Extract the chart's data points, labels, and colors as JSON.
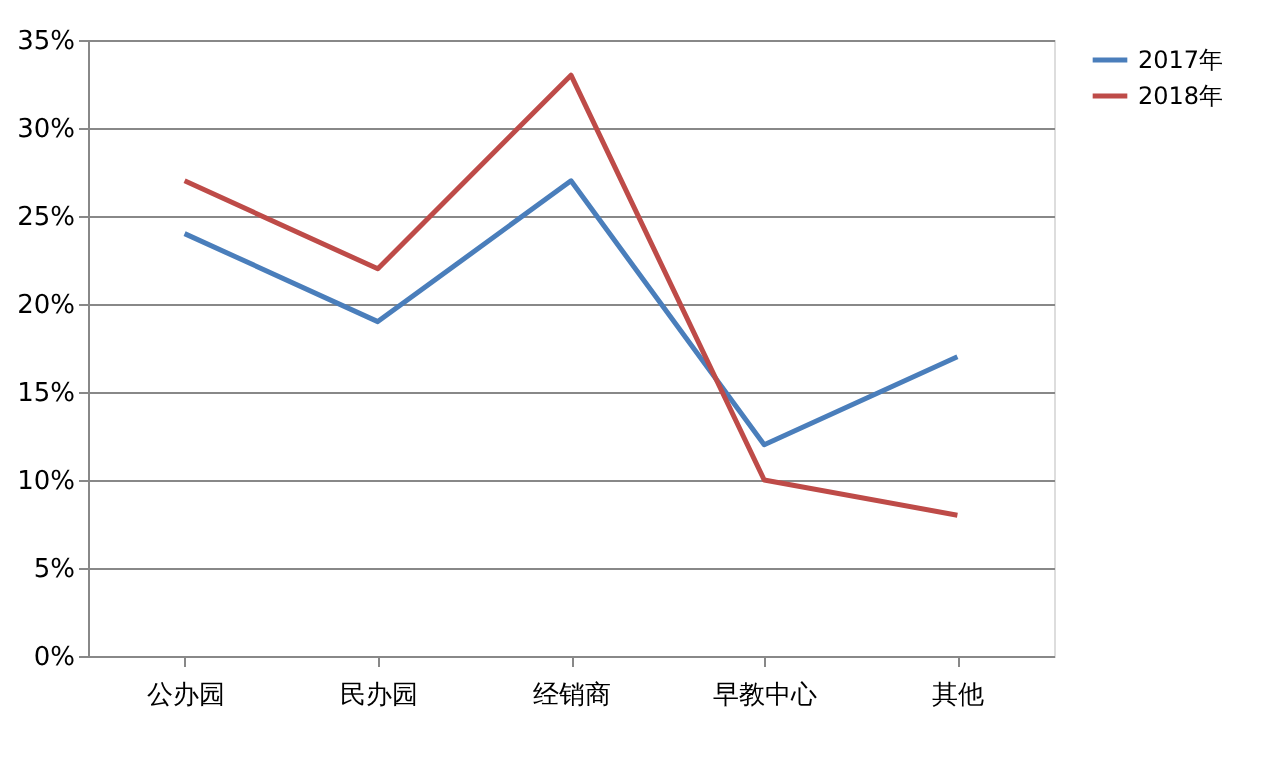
{
  "chart_data": {
    "type": "line",
    "categories": [
      "公办园",
      "民办园",
      "经销商",
      "早教中心",
      "其他"
    ],
    "series": [
      {
        "name": "2017年",
        "color": "#4a7ebb",
        "values": [
          24,
          19,
          27,
          12,
          17
        ]
      },
      {
        "name": "2018年",
        "color": "#be4b48",
        "values": [
          27,
          22,
          33,
          10,
          8
        ]
      }
    ],
    "ylim": [
      0,
      35
    ],
    "yticks": [
      {
        "value": 0,
        "label": "0%"
      },
      {
        "value": 5,
        "label": "5%"
      },
      {
        "value": 10,
        "label": "10%"
      },
      {
        "value": 15,
        "label": "15%"
      },
      {
        "value": 20,
        "label": "20%"
      },
      {
        "value": 25,
        "label": "25%"
      },
      {
        "value": 30,
        "label": "30%"
      },
      {
        "value": 35,
        "label": "35%"
      }
    ],
    "grid": "y",
    "legend": "right",
    "marker": "none",
    "line_style": "solid"
  }
}
